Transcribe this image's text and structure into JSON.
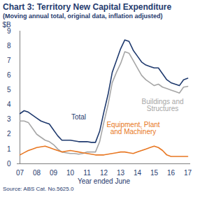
{
  "chart_data": {
    "type": "line",
    "title": "Chart 3: Territory New Capital Expenditure",
    "subtitle": "(Moving annual total, original data, inflation adjusted)",
    "x_label": "Year ended June",
    "y_label": "$B",
    "source": "Source: ABS Cat. No.5625.0",
    "categories": [
      "07",
      null,
      null,
      null,
      "08",
      null,
      null,
      null,
      "09",
      null,
      null,
      null,
      "10",
      null,
      null,
      null,
      "11",
      null,
      null,
      null,
      "12",
      null,
      null,
      null,
      "13",
      null,
      null,
      null,
      "14",
      null,
      null,
      null,
      "15",
      null,
      null,
      null,
      "16",
      null,
      null,
      null,
      "17"
    ],
    "series": [
      {
        "name": "Total",
        "color": "#1f3a6e",
        "values": [
          3.4,
          3.6,
          3.5,
          3.3,
          3.1,
          2.9,
          2.8,
          2.7,
          2.3,
          1.9,
          1.6,
          1.6,
          1.6,
          1.55,
          1.5,
          1.5,
          1.5,
          1.45,
          1.45,
          2.2,
          3.5,
          4.7,
          6.2,
          7.0,
          7.8,
          8.4,
          8.3,
          7.7,
          7.3,
          6.9,
          6.7,
          6.6,
          6.5,
          6.5,
          6.1,
          5.7,
          5.5,
          5.4,
          5.3,
          5.7,
          5.8
        ]
      },
      {
        "name": "Buildings and Structures",
        "color": "#a6a6a6",
        "values": [
          2.9,
          2.9,
          2.8,
          2.4,
          2.0,
          1.8,
          1.6,
          1.5,
          1.3,
          1.0,
          0.8,
          0.75,
          0.7,
          0.7,
          0.65,
          0.7,
          0.8,
          0.8,
          0.8,
          1.5,
          2.8,
          4.0,
          5.5,
          6.2,
          6.8,
          7.6,
          7.5,
          7.0,
          6.5,
          6.0,
          5.7,
          5.5,
          5.3,
          5.4,
          5.2,
          5.1,
          5.0,
          4.9,
          4.8,
          5.2,
          5.25
        ]
      },
      {
        "name": "Equipment, Plant and Machinery",
        "color": "#e87722",
        "values": [
          0.6,
          0.75,
          0.9,
          1.0,
          1.1,
          1.15,
          1.2,
          1.1,
          1.0,
          0.9,
          0.8,
          0.85,
          0.9,
          0.85,
          0.8,
          0.75,
          0.7,
          0.65,
          0.6,
          0.6,
          0.6,
          0.65,
          0.7,
          0.75,
          0.8,
          0.8,
          0.75,
          0.7,
          0.8,
          0.9,
          1.0,
          1.1,
          1.2,
          1.1,
          0.9,
          0.6,
          0.5,
          0.5,
          0.5,
          0.5,
          0.5
        ]
      }
    ],
    "ylim": [
      0,
      9
    ],
    "yticks": [
      0,
      1,
      2,
      3,
      4,
      5,
      6,
      7,
      8,
      9
    ],
    "grid": false
  }
}
